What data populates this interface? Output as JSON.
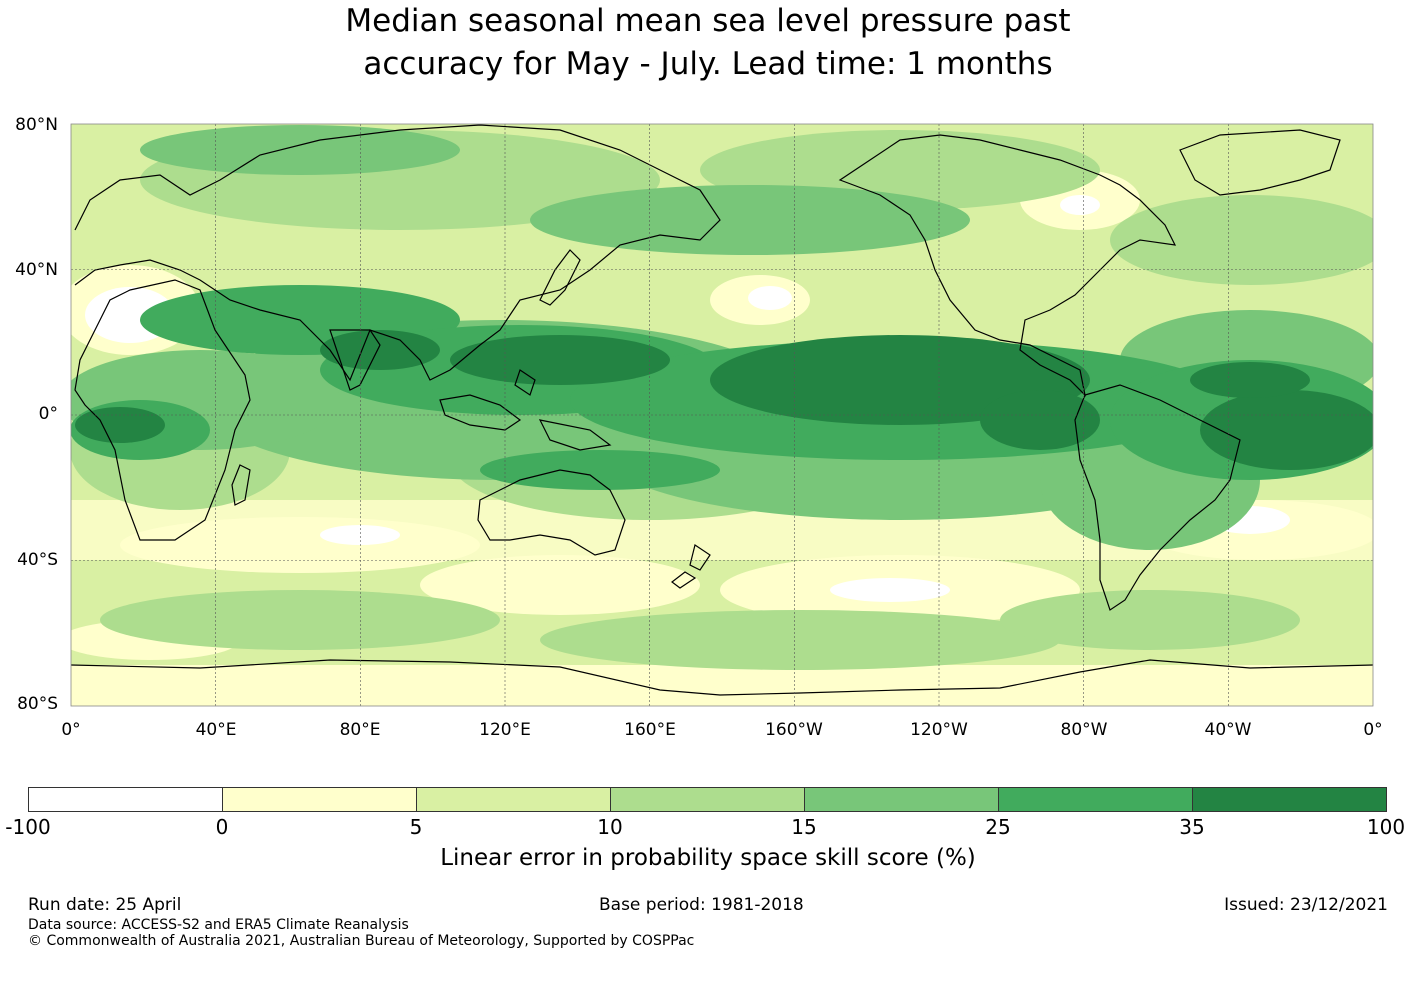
{
  "title_lines": [
    "Median seasonal mean sea level pressure past",
    "accuracy for May - July. Lead time: 1 months"
  ],
  "map": {
    "lat_labels": [
      "80°N",
      "40°N",
      "0°",
      "40°S",
      "80°S"
    ],
    "lon_labels": [
      "0°",
      "40°E",
      "80°E",
      "120°E",
      "160°E",
      "160°W",
      "120°W",
      "80°W",
      "40°W",
      "0°"
    ],
    "region": "global",
    "projection": "equirectangular, centred on 180°",
    "lat_range": [
      -80,
      80
    ],
    "lon_range": [
      0,
      360
    ],
    "gridlines": true
  },
  "colorbar": {
    "tick_labels": [
      "-100",
      "0",
      "5",
      "10",
      "15",
      "25",
      "35",
      "100"
    ],
    "colors": [
      "#ffffff",
      "#ffffcc",
      "#d9f0a3",
      "#addd8e",
      "#78c679",
      "#41ab5d",
      "#238443"
    ],
    "label": "Linear error in probability space skill score (%)"
  },
  "footer": {
    "run_date": "Run date: 25 April",
    "base_period": "Base period: 1981-2018",
    "issued": "Issued: 23/12/2021",
    "data_source": "Data source: ACCESS-S2 and ERA5 Climate Reanalysis",
    "copyright": "© Commonwealth of Australia 2021, Australian Bureau of Meteorology, Supported by COSPPac"
  }
}
